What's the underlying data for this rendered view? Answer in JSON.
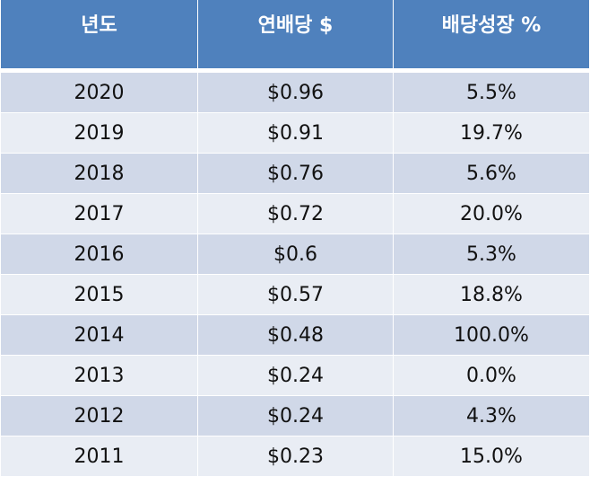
{
  "table": {
    "headers": [
      "년도",
      "연배당 $",
      "배당성장 %"
    ],
    "rows": [
      [
        "2020",
        "$0.96",
        "5.5%"
      ],
      [
        "2019",
        "$0.91",
        "19.7%"
      ],
      [
        "2018",
        "$0.76",
        "5.6%"
      ],
      [
        "2017",
        "$0.72",
        "20.0%"
      ],
      [
        "2016",
        "$0.6",
        "5.3%"
      ],
      [
        "2015",
        "$0.57",
        "18.8%"
      ],
      [
        "2014",
        "$0.48",
        "100.0%"
      ],
      [
        "2013",
        "$0.24",
        "0.0%"
      ],
      [
        "2012",
        "$0.24",
        "4.3%"
      ],
      [
        "2011",
        "$0.23",
        "15.0%"
      ]
    ]
  },
  "colors": {
    "header_bg": "#4f81bd",
    "row_odd_bg": "#d0d8e8",
    "row_even_bg": "#e9edf4"
  }
}
